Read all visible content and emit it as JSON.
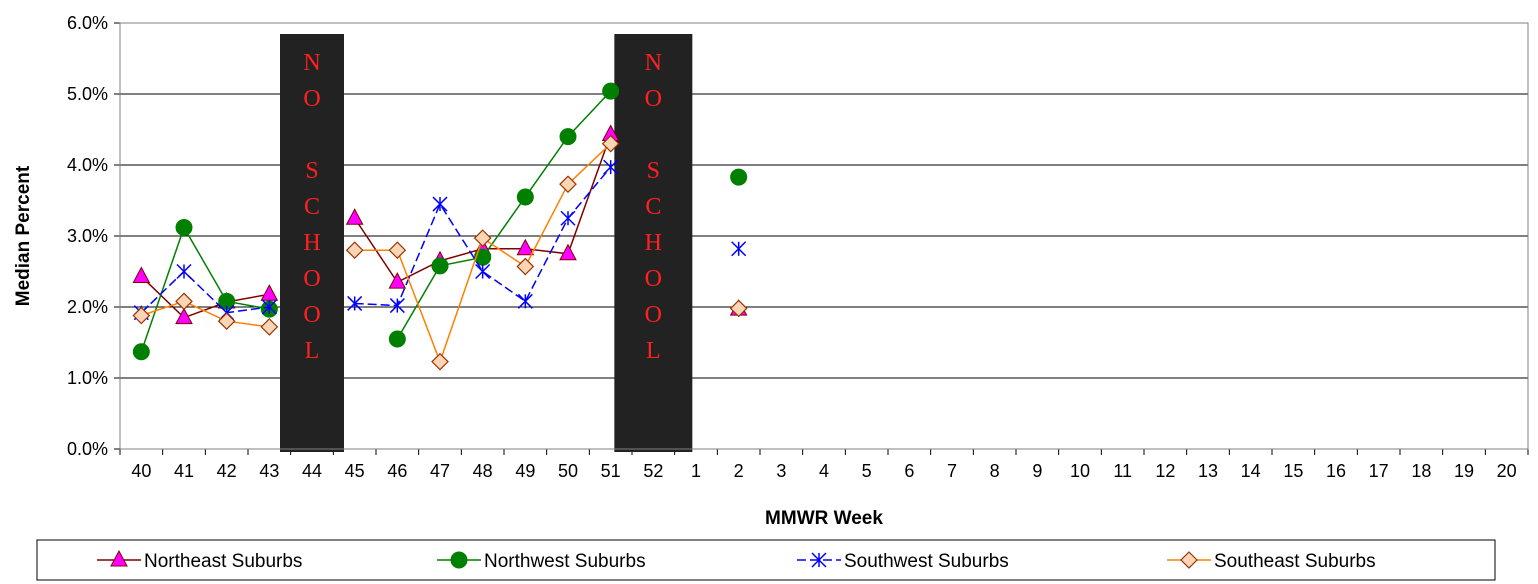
{
  "chart_data": {
    "type": "line",
    "xlabel": "MMWR Week",
    "ylabel": "Median Percent",
    "ylim": [
      0,
      6
    ],
    "yticks": [
      "0.0%",
      "1.0%",
      "2.0%",
      "3.0%",
      "4.0%",
      "5.0%",
      "6.0%"
    ],
    "ytick_values": [
      0,
      1,
      2,
      3,
      4,
      5,
      6
    ],
    "categories": [
      "40",
      "41",
      "42",
      "43",
      "44",
      "45",
      "46",
      "47",
      "48",
      "49",
      "50",
      "51",
      "52",
      "1",
      "2",
      "3",
      "4",
      "5",
      "6",
      "7",
      "8",
      "9",
      "10",
      "11",
      "12",
      "13",
      "14",
      "15",
      "16",
      "17",
      "18",
      "19",
      "20"
    ],
    "grid": "horizontal",
    "legend_position": "bottom",
    "no_school_bands": [
      {
        "category": "44",
        "letters": [
          "N",
          "O",
          "",
          "S",
          "C",
          "H",
          "O",
          "O",
          "L"
        ]
      },
      {
        "category": "52",
        "letters": [
          "N",
          "O",
          "",
          "S",
          "C",
          "H",
          "O",
          "O",
          "L"
        ]
      }
    ],
    "series": [
      {
        "name": "Northeast Suburbs",
        "color": "#800000",
        "marker_fill": "#ff00ff",
        "marker": "triangle",
        "dashed": false,
        "values": [
          2.43,
          1.85,
          2.07,
          2.18,
          null,
          3.25,
          2.35,
          2.65,
          2.82,
          2.82,
          2.75,
          4.43,
          null,
          null,
          1.97,
          null,
          null,
          null,
          null,
          null,
          null,
          null,
          null,
          null,
          null,
          null,
          null,
          null,
          null,
          null,
          null,
          null,
          null
        ]
      },
      {
        "name": "Northwest Suburbs",
        "color": "#008000",
        "marker_fill": "#008000",
        "marker": "circle",
        "dashed": false,
        "values": [
          1.37,
          3.12,
          2.08,
          1.97,
          null,
          null,
          1.55,
          2.58,
          2.7,
          3.55,
          4.4,
          5.04,
          null,
          null,
          3.83,
          null,
          null,
          null,
          null,
          null,
          null,
          null,
          null,
          null,
          null,
          null,
          null,
          null,
          null,
          null,
          null,
          null,
          null
        ]
      },
      {
        "name": "Southwest Suburbs",
        "color": "#0000ff",
        "marker_fill": "#0000ff",
        "marker": "asterisk",
        "dashed": true,
        "values": [
          1.92,
          2.5,
          1.92,
          2.0,
          null,
          2.05,
          2.02,
          3.45,
          2.5,
          2.08,
          3.25,
          3.97,
          null,
          null,
          2.82,
          null,
          null,
          null,
          null,
          null,
          null,
          null,
          null,
          null,
          null,
          null,
          null,
          null,
          null,
          null,
          null,
          null,
          null
        ]
      },
      {
        "name": "Southeast Suburbs",
        "color": "#ff8000",
        "marker_fill": "#fcd5b4",
        "marker": "diamond",
        "dashed": false,
        "values": [
          1.88,
          2.08,
          1.8,
          1.72,
          null,
          2.8,
          2.8,
          1.23,
          2.97,
          2.57,
          3.73,
          4.3,
          null,
          null,
          1.98,
          null,
          null,
          null,
          null,
          null,
          null,
          null,
          null,
          null,
          null,
          null,
          null,
          null,
          null,
          null,
          null,
          null,
          null
        ]
      }
    ]
  }
}
